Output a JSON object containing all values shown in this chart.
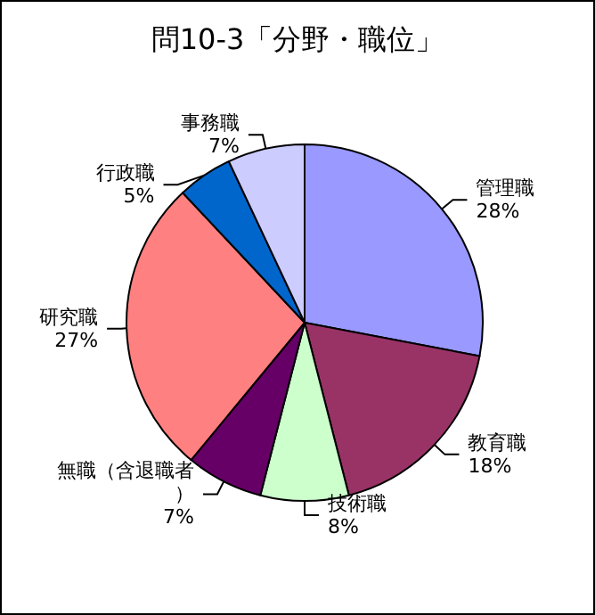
{
  "chart_data": {
    "type": "pie",
    "title": "問10-3「分野・職位」",
    "categories": [
      "管理職",
      "教育職",
      "技術職",
      "無職（含退職者）",
      "研究職",
      "行政職",
      "事務職"
    ],
    "values": [
      28,
      18,
      8,
      7,
      27,
      5,
      7
    ],
    "value_labels": [
      "28%",
      "18%",
      "8%",
      "7%",
      "27%",
      "5%",
      "7%"
    ],
    "colors": [
      "#9999ff",
      "#993366",
      "#ccffcc",
      "#660066",
      "#ff8080",
      "#0066cc",
      "#ccccff"
    ]
  }
}
